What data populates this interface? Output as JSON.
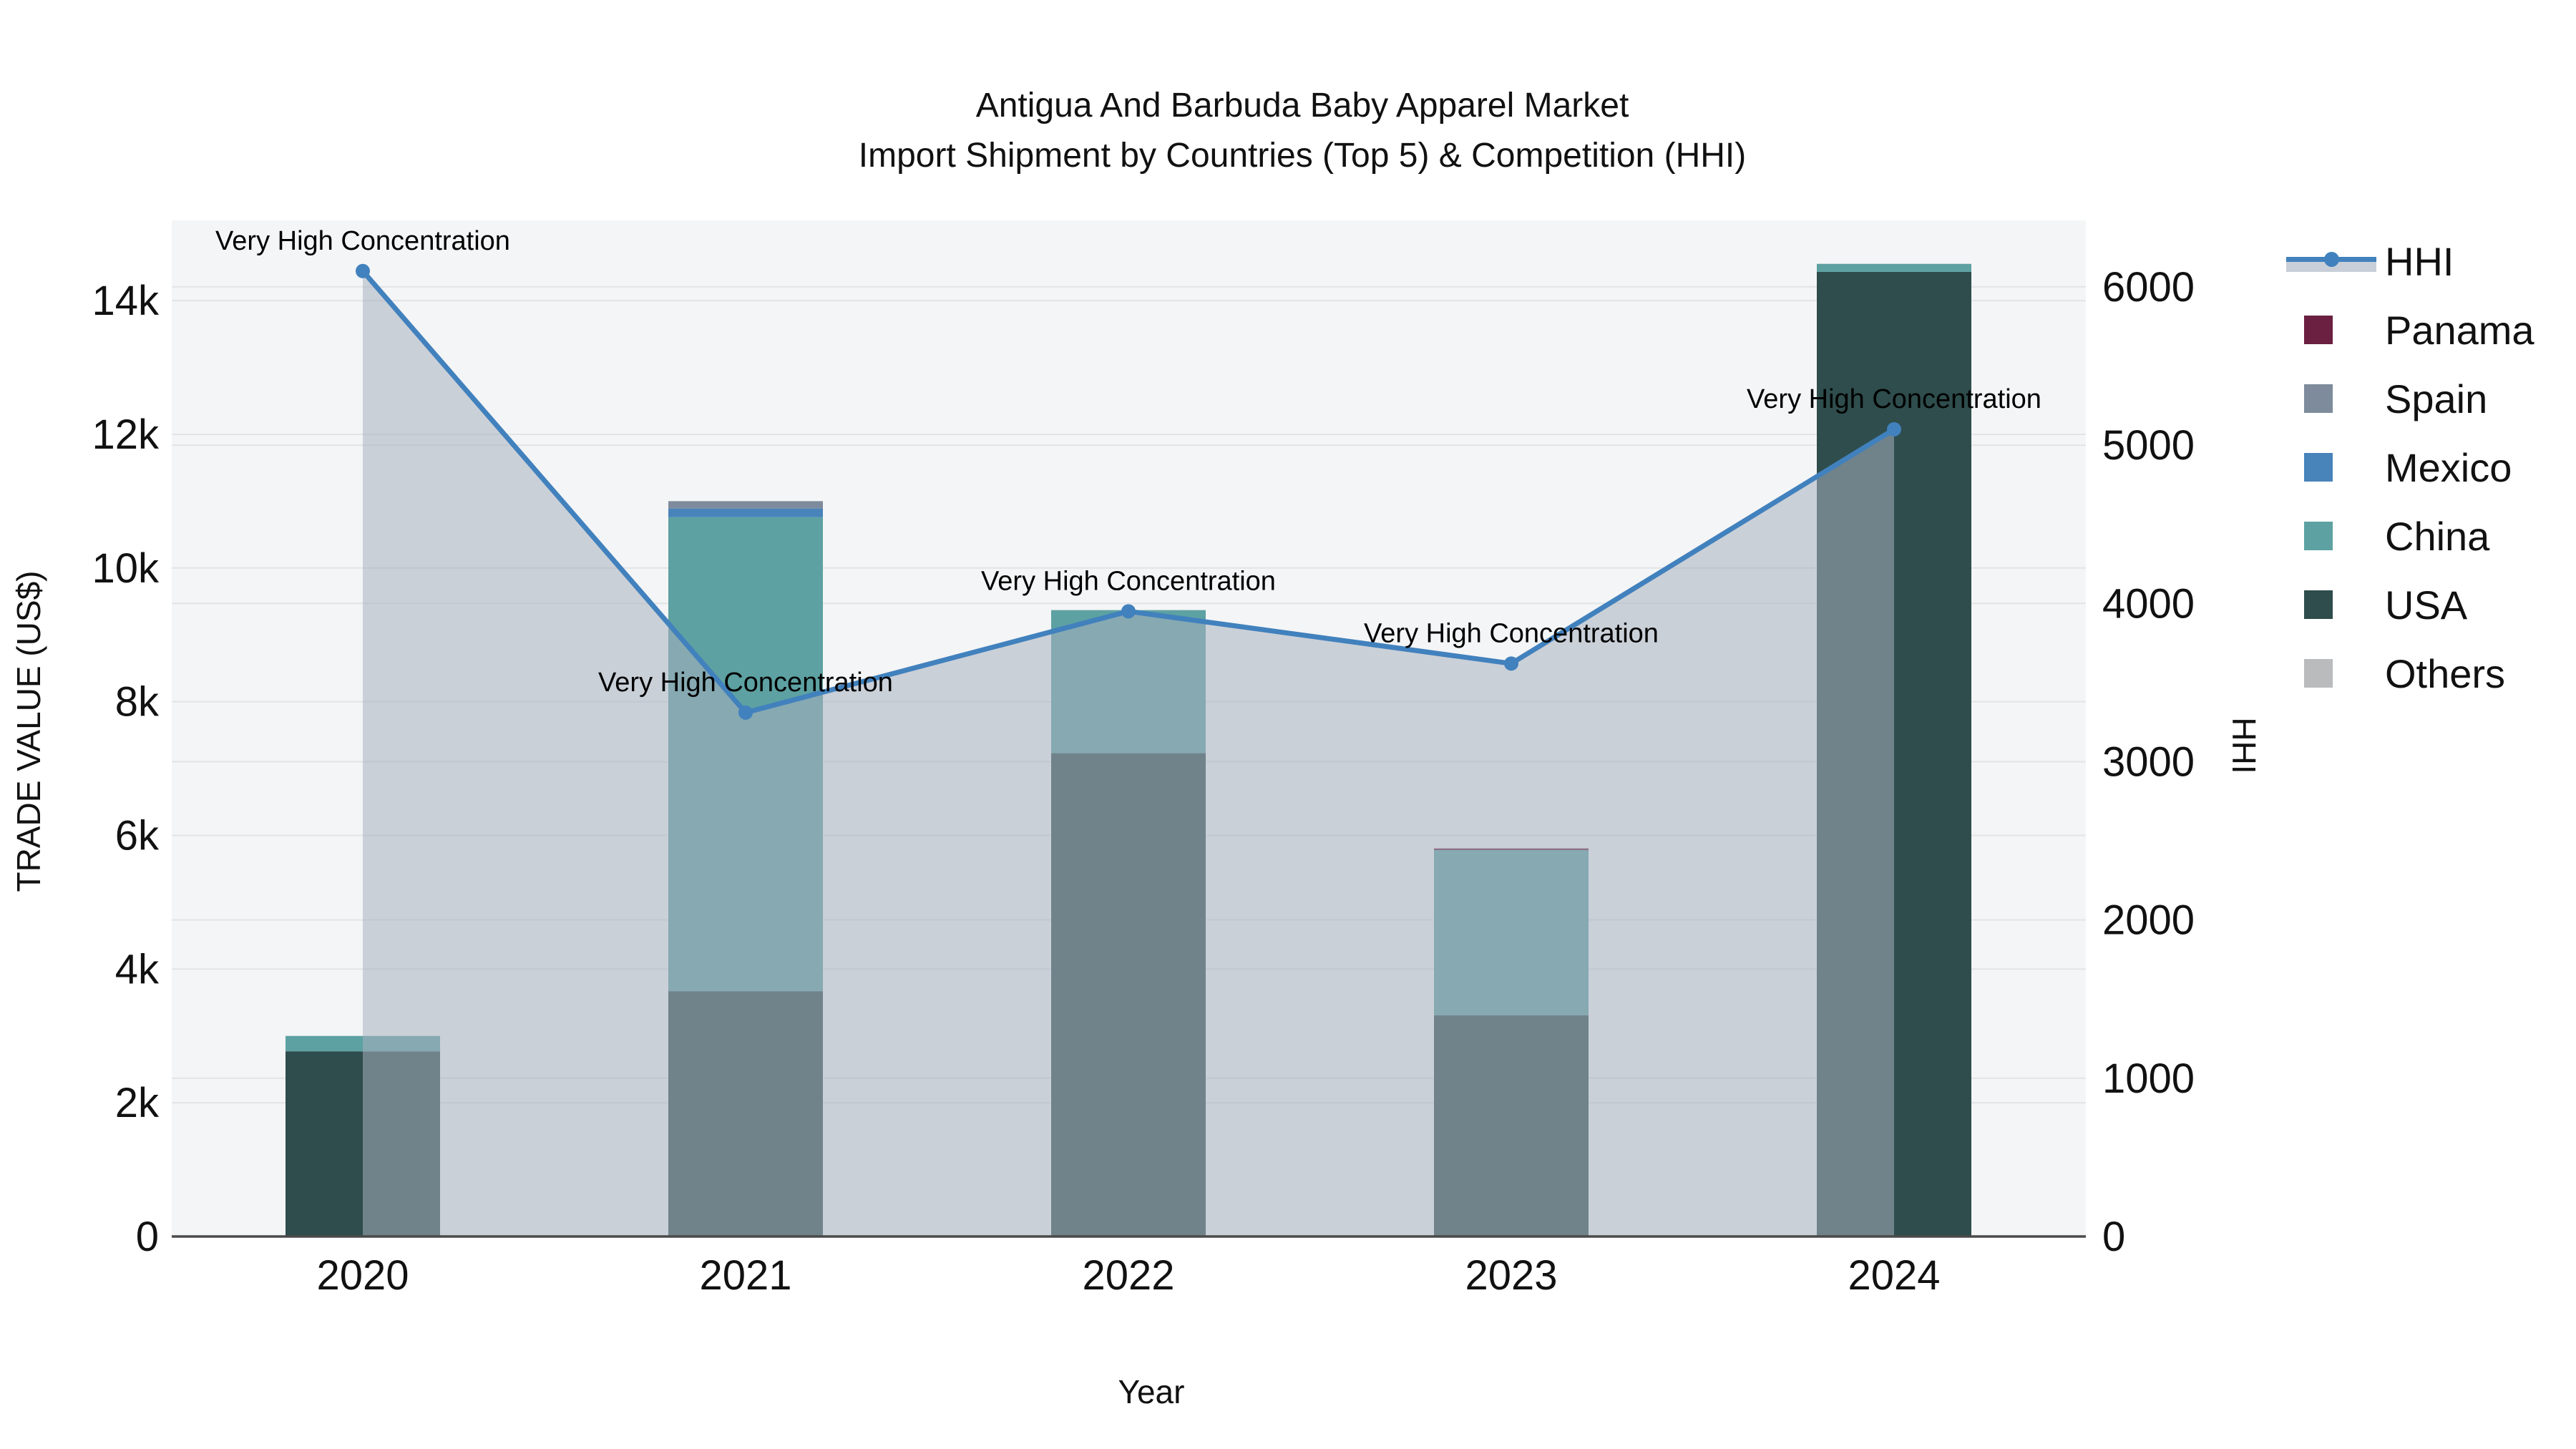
{
  "title": {
    "line1": "Antigua And Barbuda Baby Apparel Market",
    "line2": "Import Shipment by Countries (Top 5) & Competition (HHI)"
  },
  "axes": {
    "x": {
      "title": "Year"
    },
    "y_left": {
      "title": "TRADE VALUE (US$)",
      "ticks": [
        {
          "label": "0",
          "value": 0
        },
        {
          "label": "2k",
          "value": 2000
        },
        {
          "label": "4k",
          "value": 4000
        },
        {
          "label": "6k",
          "value": 6000
        },
        {
          "label": "8k",
          "value": 8000
        },
        {
          "label": "10k",
          "value": 10000
        },
        {
          "label": "12k",
          "value": 12000
        },
        {
          "label": "14k",
          "value": 14000
        }
      ]
    },
    "y_right": {
      "title": "HHI",
      "ticks": [
        {
          "label": "0",
          "value": 0
        },
        {
          "label": "1000",
          "value": 1000
        },
        {
          "label": "2000",
          "value": 2000
        },
        {
          "label": "3000",
          "value": 3000
        },
        {
          "label": "4000",
          "value": 4000
        },
        {
          "label": "5000",
          "value": 5000
        },
        {
          "label": "6000",
          "value": 6000
        }
      ]
    }
  },
  "legend": [
    {
      "label": "HHI",
      "type": "line",
      "color": "#4181bd"
    },
    {
      "label": "Panama",
      "type": "swatch",
      "color": "#6b1f41"
    },
    {
      "label": "Spain",
      "type": "swatch",
      "color": "#7d8b9c"
    },
    {
      "label": "Mexico",
      "type": "swatch",
      "color": "#4883ba"
    },
    {
      "label": "China",
      "type": "swatch",
      "color": "#5da1a2"
    },
    {
      "label": "USA",
      "type": "swatch",
      "color": "#2e4d4c"
    },
    {
      "label": "Others",
      "type": "swatch",
      "color": "#b9bbbd"
    }
  ],
  "colors": {
    "plot_bg": "#f4f5f6",
    "grid": "#e2e4e6",
    "axis_line": "#4a4a4a",
    "hhi_line": "#4181bd",
    "hhi_area": "rgba(167,177,191,0.55)",
    "annotation_text": "#000000",
    "tick_text": "#111111",
    "USA": "#2e4d4c",
    "China": "#5da1a2",
    "Mexico": "#4883ba",
    "Spain": "#7d8b9c",
    "Panama": "#6b1f41",
    "Others": "#b9bbbd"
  },
  "chart_data": {
    "type": [
      "bar",
      "line"
    ],
    "title": "Antigua And Barbuda Baby Apparel Market — Import Shipment by Countries (Top 5) & Competition (HHI)",
    "xlabel": "Year",
    "ylabel": "TRADE VALUE (US$)",
    "ylabel2": "HHI",
    "categories": [
      "2020",
      "2021",
      "2022",
      "2023",
      "2024"
    ],
    "bar_mode": "stacked",
    "series": [
      {
        "name": "USA",
        "values": [
          2770,
          3670,
          7230,
          3310,
          14430
        ]
      },
      {
        "name": "China",
        "values": [
          230,
          7090,
          2140,
          2470,
          120
        ]
      },
      {
        "name": "Mexico",
        "values": [
          0,
          130,
          0,
          0,
          0
        ]
      },
      {
        "name": "Spain",
        "values": [
          0,
          110,
          0,
          0,
          0
        ]
      },
      {
        "name": "Panama",
        "values": [
          0,
          0,
          0,
          25,
          0
        ]
      },
      {
        "name": "Others",
        "values": [
          0,
          0,
          0,
          0,
          0
        ]
      }
    ],
    "bar_totals": [
      3000,
      11000,
      9370,
      5805,
      14550
    ],
    "hhi": {
      "name": "HHI",
      "values": [
        6100,
        3310,
        3950,
        3620,
        5100
      ],
      "axis": "right",
      "style": "line+markers+area"
    },
    "annotations": [
      {
        "x": "2020",
        "text": "Very High Concentration"
      },
      {
        "x": "2021",
        "text": "Very High Concentration"
      },
      {
        "x": "2022",
        "text": "Very High Concentration"
      },
      {
        "x": "2023",
        "text": "Very High Concentration"
      },
      {
        "x": "2024",
        "text": "Very High Concentration"
      }
    ],
    "ylim": [
      0,
      15200
    ],
    "y2lim": [
      0,
      6420
    ],
    "grid": true,
    "legend_position": "right"
  }
}
